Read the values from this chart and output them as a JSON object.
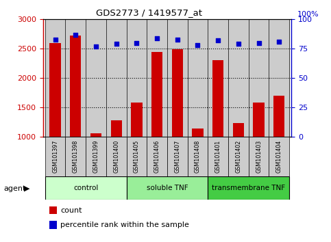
{
  "title": "GDS2773 / 1419577_at",
  "samples": [
    "GSM101397",
    "GSM101398",
    "GSM101399",
    "GSM101400",
    "GSM101405",
    "GSM101406",
    "GSM101407",
    "GSM101408",
    "GSM101401",
    "GSM101402",
    "GSM101403",
    "GSM101404"
  ],
  "count_values": [
    2600,
    2720,
    1060,
    1280,
    1580,
    2440,
    2490,
    1140,
    2310,
    1230,
    1580,
    1700
  ],
  "percentile_values": [
    83,
    87,
    77,
    79,
    80,
    84,
    83,
    78,
    82,
    79,
    80,
    81
  ],
  "ylim_left": [
    1000,
    3000
  ],
  "ylim_right": [
    0,
    100
  ],
  "yticks_left": [
    1000,
    1500,
    2000,
    2500,
    3000
  ],
  "yticks_right": [
    0,
    25,
    50,
    75,
    100
  ],
  "bar_color": "#cc0000",
  "dot_color": "#0000cc",
  "groups": [
    {
      "label": "control",
      "start": 0,
      "end": 4,
      "color": "#ccffcc"
    },
    {
      "label": "soluble TNF",
      "start": 4,
      "end": 8,
      "color": "#99ee99"
    },
    {
      "label": "transmembrane TNF",
      "start": 8,
      "end": 12,
      "color": "#44cc44"
    }
  ],
  "agent_label": "agent",
  "legend_count_label": "count",
  "legend_pct_label": "percentile rank within the sample",
  "background_color": "#ffffff",
  "sample_area_color": "#cccccc",
  "right_axis_color": "#0000cc",
  "left_axis_color": "#cc0000",
  "top_right_label": "100%"
}
